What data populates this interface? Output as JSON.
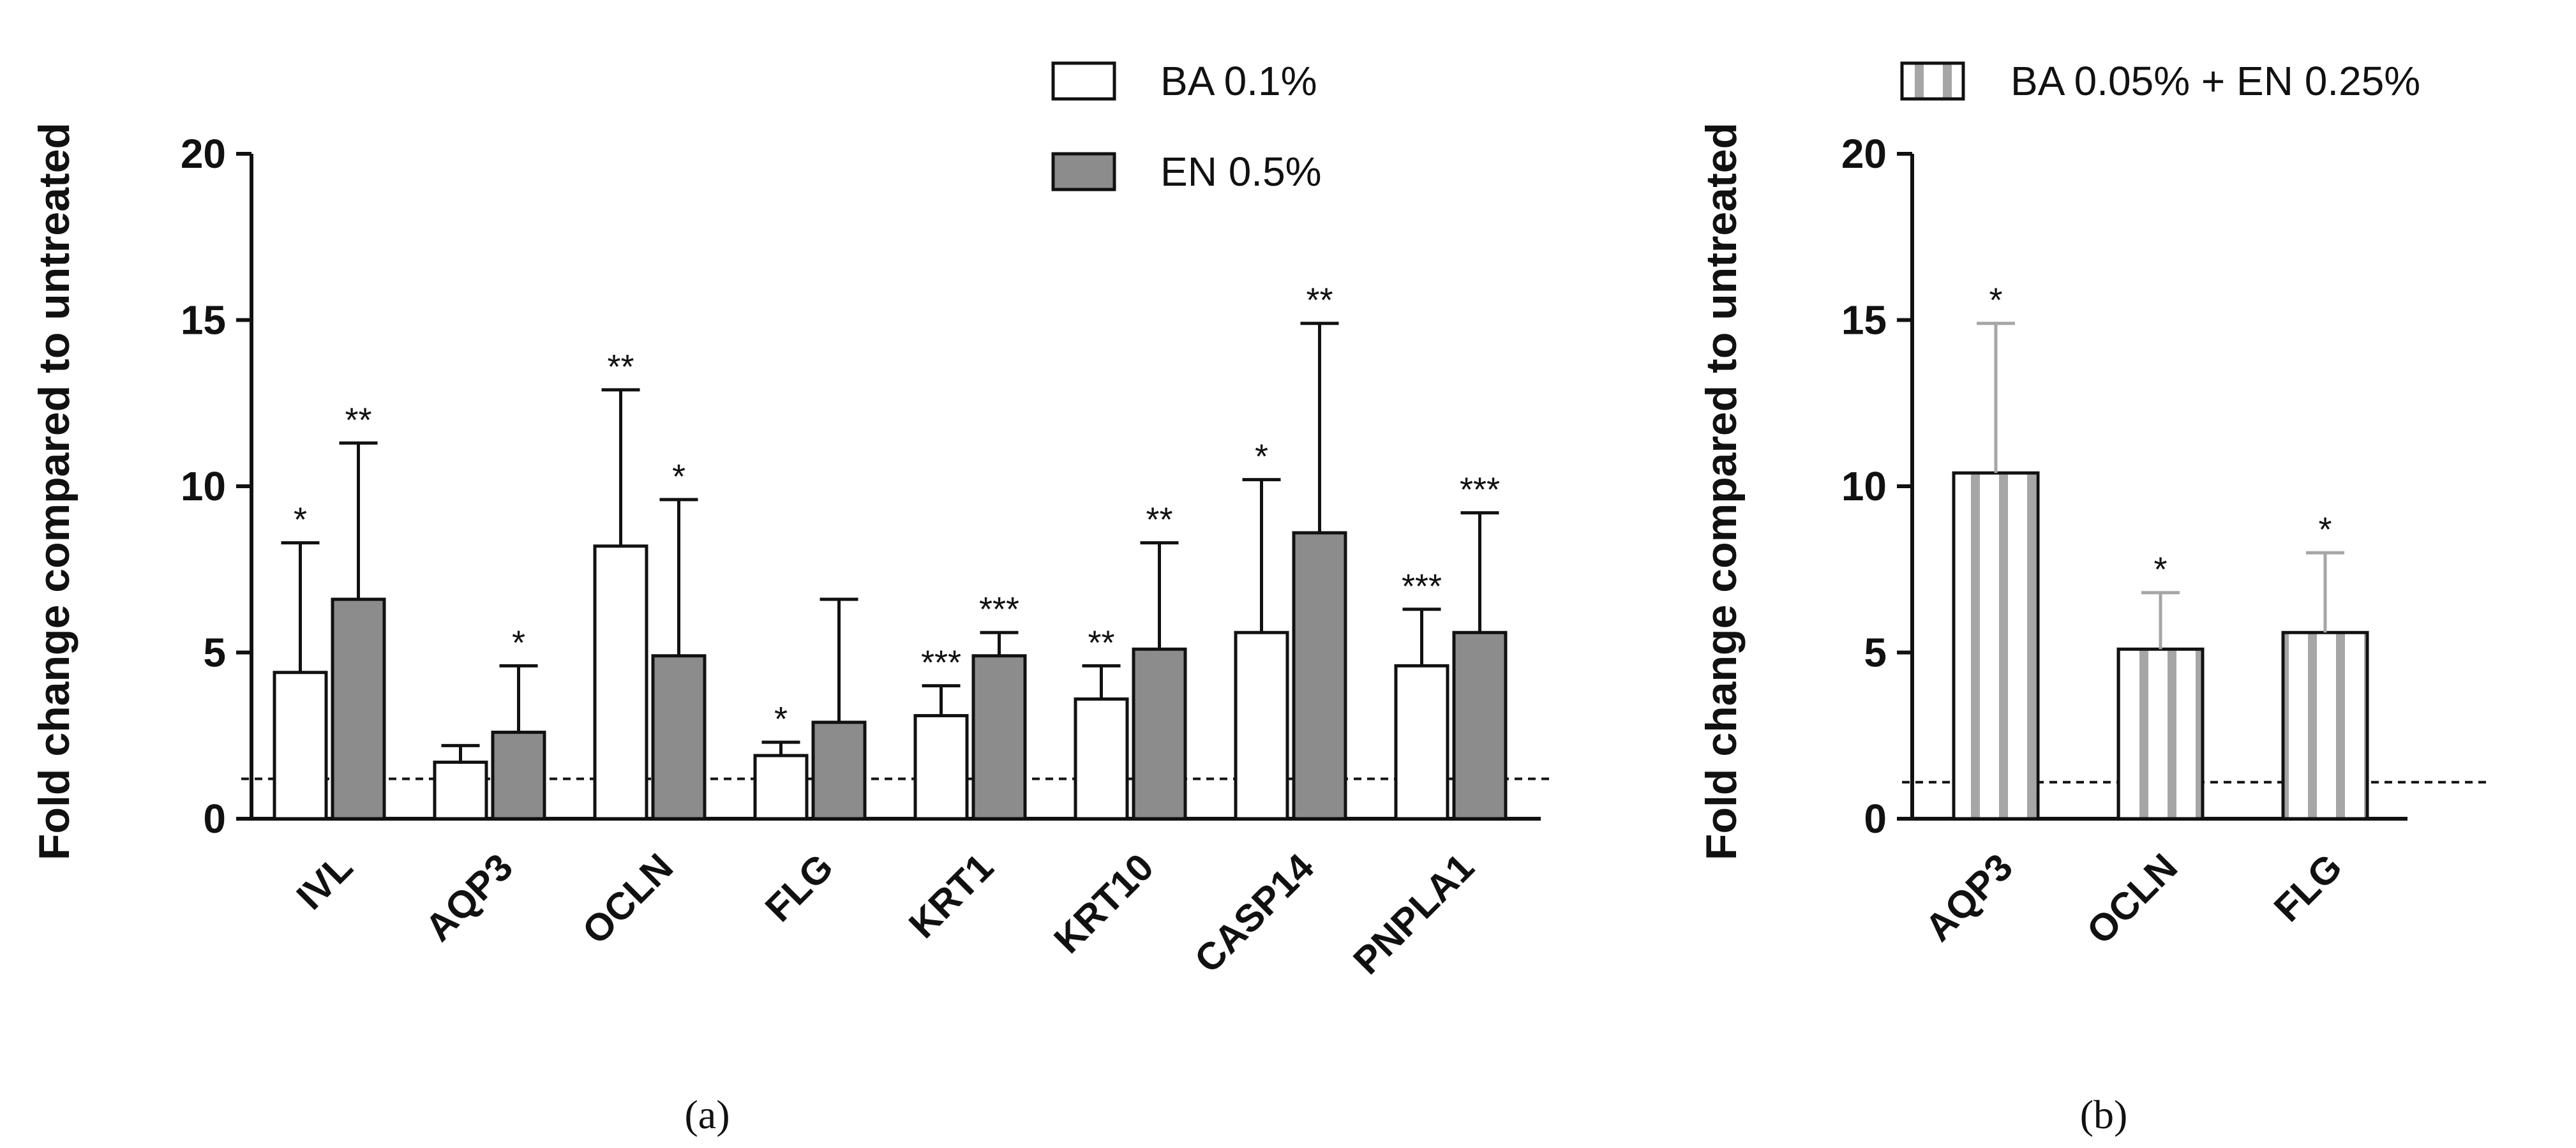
{
  "colors": {
    "ba_fill": "#ffffff",
    "en_fill": "#8c8c8c",
    "combo_stripe": "#a6a6a6",
    "combo_errbar": "#a6a6a6",
    "axis": "#111111"
  },
  "chart_data": [
    {
      "panel": "a",
      "type": "bar",
      "ylabel": "Fold change compared to untreated",
      "ylim": [
        0,
        20
      ],
      "yticks": [
        "0",
        "5",
        "10",
        "15",
        "20"
      ],
      "reference_line": 1.2,
      "categories": [
        "IVL",
        "AQP3",
        "OCLN",
        "FLG",
        "KRT1",
        "KRT10",
        "CASP14",
        "PNPLA1"
      ],
      "series": [
        {
          "name": "BA 0.1%",
          "values": [
            4.4,
            1.7,
            8.2,
            1.9,
            3.1,
            3.6,
            5.6,
            4.6
          ],
          "errors": [
            3.9,
            0.5,
            4.7,
            0.4,
            0.9,
            1.0,
            4.6,
            1.7
          ],
          "significance": [
            "*",
            "",
            "**",
            "*",
            "***",
            "**",
            "*",
            "***"
          ]
        },
        {
          "name": "EN 0.5%",
          "values": [
            6.6,
            2.6,
            4.9,
            2.9,
            4.9,
            5.1,
            8.6,
            5.6
          ],
          "errors": [
            4.7,
            2.0,
            4.7,
            3.7,
            0.7,
            3.2,
            6.3,
            3.6
          ],
          "significance": [
            "**",
            "*",
            "*",
            "",
            "***",
            "**",
            "**",
            "***"
          ]
        }
      ],
      "panel_label": "(a)"
    },
    {
      "panel": "b",
      "type": "bar",
      "ylabel": "Fold change compared to untreated",
      "ylim": [
        0,
        20
      ],
      "yticks": [
        "0",
        "5",
        "10",
        "15",
        "20"
      ],
      "reference_line": 1.1,
      "categories": [
        "AQP3",
        "OCLN",
        "FLG"
      ],
      "series": [
        {
          "name": "BA 0.05% + EN 0.25%",
          "values": [
            10.4,
            5.1,
            5.6
          ],
          "errors": [
            4.5,
            1.7,
            2.4
          ],
          "significance": [
            "*",
            "*",
            "*"
          ]
        }
      ],
      "panel_label": "(b)"
    }
  ]
}
